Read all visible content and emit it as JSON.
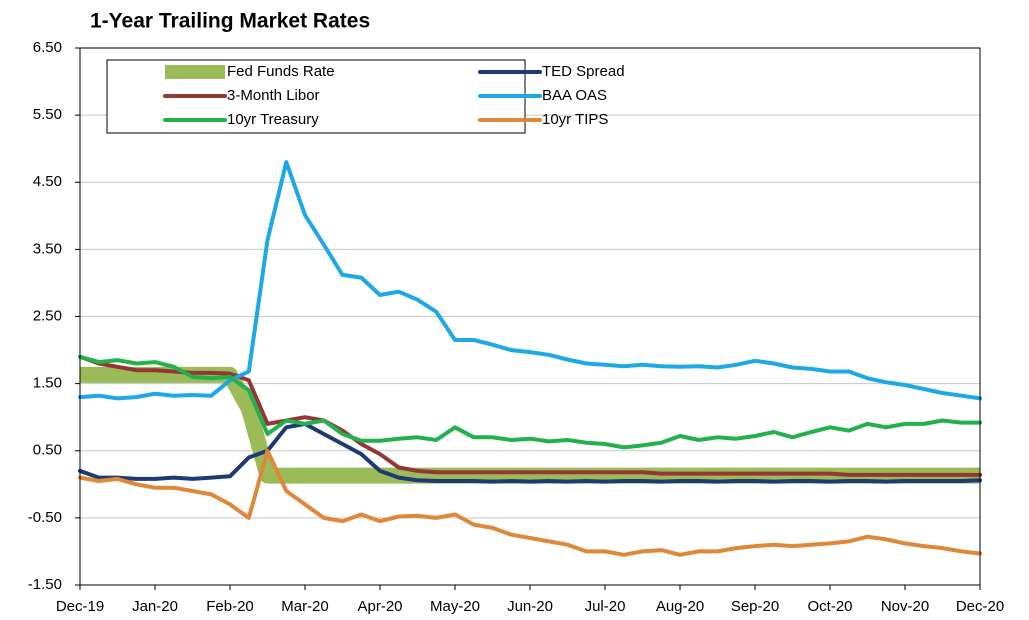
{
  "chart_data": {
    "type": "line",
    "title": "1-Year Trailing Market Rates",
    "x": [
      0,
      0.25,
      0.5,
      0.75,
      1,
      1.25,
      1.5,
      1.75,
      2,
      2.25,
      2.5,
      2.75,
      3,
      3.25,
      3.5,
      3.75,
      4,
      4.25,
      4.5,
      4.75,
      5,
      5.25,
      5.5,
      5.75,
      6,
      6.25,
      6.5,
      6.75,
      7,
      7.25,
      7.5,
      7.75,
      8,
      8.25,
      8.5,
      8.75,
      9,
      9.25,
      9.5,
      9.75,
      10,
      10.25,
      10.5,
      10.75,
      11,
      11.25,
      11.5,
      11.75,
      12
    ],
    "xlim": [
      0,
      12
    ],
    "xticks": [
      {
        "value": 0,
        "label": "Dec-19"
      },
      {
        "value": 1,
        "label": "Jan-20"
      },
      {
        "value": 2,
        "label": "Feb-20"
      },
      {
        "value": 3,
        "label": "Mar-20"
      },
      {
        "value": 4,
        "label": "Apr-20"
      },
      {
        "value": 5,
        "label": "May-20"
      },
      {
        "value": 6,
        "label": "Jun-20"
      },
      {
        "value": 7,
        "label": "Jul-20"
      },
      {
        "value": 8,
        "label": "Aug-20"
      },
      {
        "value": 9,
        "label": "Sep-20"
      },
      {
        "value": 10,
        "label": "Oct-20"
      },
      {
        "value": 11,
        "label": "Nov-20"
      },
      {
        "value": 12,
        "label": "Dec-20"
      }
    ],
    "ylim": [
      -1.5,
      6.5
    ],
    "yticks": [
      {
        "value": -1.5,
        "label": "-1.50"
      },
      {
        "value": -0.5,
        "label": "-0.50"
      },
      {
        "value": 0.5,
        "label": "0.50"
      },
      {
        "value": 1.5,
        "label": "1.50"
      },
      {
        "value": 2.5,
        "label": "2.50"
      },
      {
        "value": 3.5,
        "label": "3.50"
      },
      {
        "value": 4.5,
        "label": "4.50"
      },
      {
        "value": 5.5,
        "label": "5.50"
      },
      {
        "value": 6.5,
        "label": "6.50"
      }
    ],
    "grid": true,
    "series": [
      {
        "name": "Fed Funds Rate",
        "color": "#9bbb59",
        "values": [
          1.63,
          1.63,
          1.63,
          1.63,
          1.63,
          1.63,
          1.63,
          1.63,
          1.63,
          1.13,
          0.13,
          0.13,
          0.13,
          0.13,
          0.13,
          0.13,
          0.13,
          0.13,
          0.13,
          0.13,
          0.13,
          0.13,
          0.13,
          0.13,
          0.13,
          0.13,
          0.13,
          0.13,
          0.13,
          0.13,
          0.13,
          0.13,
          0.13,
          0.13,
          0.13,
          0.13,
          0.13,
          0.13,
          0.13,
          0.13,
          0.13,
          0.13,
          0.13,
          0.13,
          0.13,
          0.13,
          0.13,
          0.13,
          0.13
        ]
      },
      {
        "name": "TED Spread",
        "color": "#1f3a73",
        "values": [
          0.2,
          0.1,
          0.1,
          0.08,
          0.08,
          0.1,
          0.08,
          0.1,
          0.12,
          0.4,
          0.5,
          0.85,
          0.9,
          0.75,
          0.6,
          0.45,
          0.2,
          0.1,
          0.06,
          0.05,
          0.05,
          0.05,
          0.04,
          0.05,
          0.04,
          0.05,
          0.04,
          0.05,
          0.04,
          0.05,
          0.05,
          0.04,
          0.05,
          0.05,
          0.04,
          0.05,
          0.05,
          0.04,
          0.05,
          0.05,
          0.04,
          0.05,
          0.05,
          0.04,
          0.05,
          0.05,
          0.05,
          0.05,
          0.06
        ]
      },
      {
        "name": "3-Month Libor",
        "color": "#943634",
        "values": [
          1.9,
          1.8,
          1.75,
          1.7,
          1.7,
          1.68,
          1.66,
          1.66,
          1.65,
          1.55,
          0.9,
          0.95,
          1.0,
          0.95,
          0.8,
          0.6,
          0.45,
          0.25,
          0.2,
          0.18,
          0.18,
          0.18,
          0.18,
          0.18,
          0.18,
          0.18,
          0.18,
          0.18,
          0.18,
          0.18,
          0.18,
          0.16,
          0.16,
          0.16,
          0.16,
          0.16,
          0.16,
          0.16,
          0.16,
          0.16,
          0.16,
          0.14,
          0.14,
          0.14,
          0.14,
          0.14,
          0.14,
          0.14,
          0.14
        ]
      },
      {
        "name": "BAA OAS",
        "color": "#1ea8e8",
        "values": [
          1.3,
          1.32,
          1.28,
          1.3,
          1.35,
          1.32,
          1.33,
          1.32,
          1.55,
          1.68,
          3.64,
          4.8,
          4.01,
          3.57,
          3.12,
          3.08,
          2.82,
          2.87,
          2.75,
          2.57,
          2.15,
          2.15,
          2.08,
          2.0,
          1.97,
          1.93,
          1.86,
          1.8,
          1.78,
          1.76,
          1.78,
          1.76,
          1.75,
          1.76,
          1.74,
          1.78,
          1.84,
          1.8,
          1.74,
          1.72,
          1.68,
          1.68,
          1.58,
          1.52,
          1.48,
          1.42,
          1.36,
          1.32,
          1.28
        ]
      },
      {
        "name": "10yr Treasury",
        "color": "#22b14c",
        "values": [
          1.9,
          1.82,
          1.85,
          1.8,
          1.82,
          1.75,
          1.6,
          1.58,
          1.6,
          1.4,
          0.75,
          0.95,
          0.9,
          0.95,
          0.75,
          0.65,
          0.65,
          0.68,
          0.7,
          0.66,
          0.85,
          0.7,
          0.7,
          0.66,
          0.68,
          0.64,
          0.66,
          0.62,
          0.6,
          0.55,
          0.58,
          0.62,
          0.72,
          0.66,
          0.7,
          0.68,
          0.72,
          0.78,
          0.7,
          0.78,
          0.85,
          0.8,
          0.9,
          0.85,
          0.9,
          0.9,
          0.95,
          0.92,
          0.92
        ]
      },
      {
        "name": "10yr TIPS",
        "color": "#e0883a",
        "values": [
          0.1,
          0.05,
          0.08,
          0.0,
          -0.05,
          -0.05,
          -0.1,
          -0.15,
          -0.3,
          -0.5,
          0.5,
          -0.1,
          -0.3,
          -0.5,
          -0.55,
          -0.45,
          -0.55,
          -0.48,
          -0.47,
          -0.5,
          -0.45,
          -0.6,
          -0.65,
          -0.75,
          -0.8,
          -0.85,
          -0.9,
          -1.0,
          -1.0,
          -1.05,
          -1.0,
          -0.98,
          -1.05,
          -1.0,
          -1.0,
          -0.95,
          -0.92,
          -0.9,
          -0.92,
          -0.9,
          -0.88,
          -0.85,
          -0.78,
          -0.82,
          -0.88,
          -0.92,
          -0.95,
          -1.0,
          -1.03
        ]
      }
    ]
  }
}
